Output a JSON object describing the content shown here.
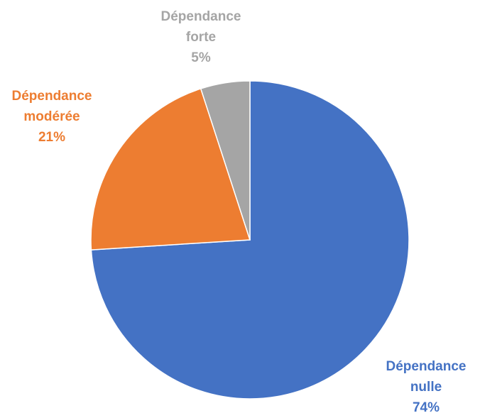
{
  "chart_data": {
    "type": "pie",
    "start_angle_deg": 0,
    "direction": "clockwise",
    "slices": [
      {
        "name": "Dépendance nulle",
        "label_lines": [
          "Dépendance",
          "nulle"
        ],
        "value": 74,
        "value_label": "74%",
        "color": "#4472C4"
      },
      {
        "name": "Dépendance modérée",
        "label_lines": [
          "Dépendance",
          "modérée"
        ],
        "value": 21,
        "value_label": "21%",
        "color": "#ED7D31"
      },
      {
        "name": "Dépendance forte",
        "label_lines": [
          "Dépendance",
          "forte"
        ],
        "value": 5,
        "value_label": "5%",
        "color": "#A5A5A5"
      }
    ]
  }
}
